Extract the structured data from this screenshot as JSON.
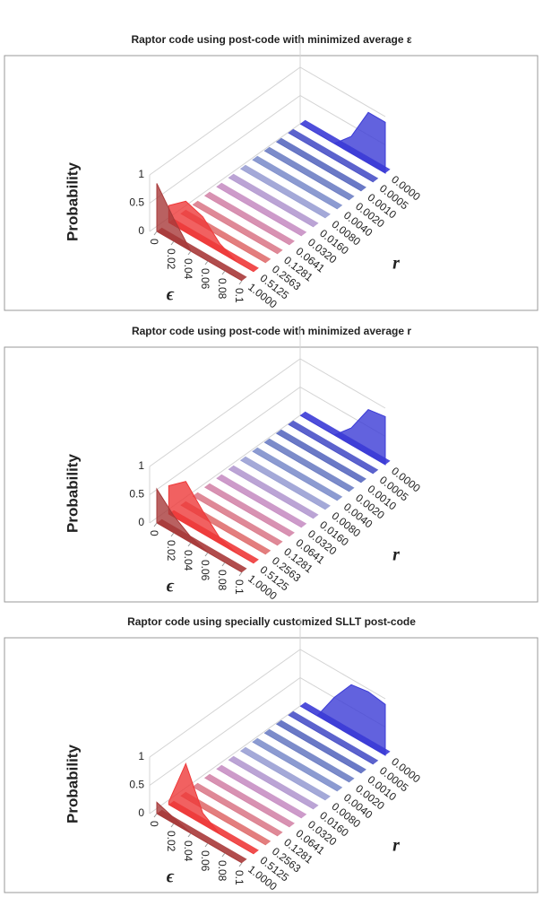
{
  "chart_data": [
    {
      "type": "area3d",
      "title": "Raptor code using post-code with minimized average  ε",
      "y_label": "Probability",
      "x_label": "ϵ",
      "z_label": "r",
      "x": [
        0,
        0.02,
        0.04,
        0.06,
        0.08,
        0.1
      ],
      "xlim": [
        0,
        0.1
      ],
      "xticks": [
        0,
        0.02,
        0.04,
        0.06,
        0.08,
        0.1
      ],
      "ylim": [
        0,
        1
      ],
      "yticks": [
        0,
        0.5,
        1
      ],
      "grid": true,
      "series": [
        {
          "name": "0.0000",
          "color": "#3b3bd6",
          "values": [
            0,
            0,
            0,
            0.3,
            0.9,
            0.9
          ]
        },
        {
          "name": "0.0005",
          "color": "#4a52c8",
          "values": [
            0,
            0,
            0,
            0,
            0,
            0
          ]
        },
        {
          "name": "0.0010",
          "color": "#5a6ac0",
          "values": [
            0,
            0,
            0,
            0,
            0,
            0
          ]
        },
        {
          "name": "0.0020",
          "color": "#6e7fc4",
          "values": [
            0,
            0,
            0,
            0,
            0,
            0
          ]
        },
        {
          "name": "0.0040",
          "color": "#8090cc",
          "values": [
            0,
            0,
            0,
            0,
            0,
            0
          ]
        },
        {
          "name": "0.0080",
          "color": "#9aa0d4",
          "values": [
            0,
            0,
            0,
            0,
            0,
            0
          ]
        },
        {
          "name": "0.0160",
          "color": "#b49ad0",
          "values": [
            0,
            0,
            0,
            0,
            0,
            0
          ]
        },
        {
          "name": "0.0320",
          "color": "#c890c4",
          "values": [
            0,
            0,
            0,
            0,
            0,
            0
          ]
        },
        {
          "name": "0.0641",
          "color": "#d486aa",
          "values": [
            0,
            0,
            0,
            0,
            0,
            0
          ]
        },
        {
          "name": "0.1281",
          "color": "#dc7c8c",
          "values": [
            0,
            0,
            0,
            0,
            0,
            0
          ]
        },
        {
          "name": "0.2563",
          "color": "#e07070",
          "values": [
            0,
            0,
            0,
            0,
            0,
            0
          ]
        },
        {
          "name": "0.5125",
          "color": "#ee3a3a",
          "values": [
            0.3,
            0.55,
            0.45,
            0.15,
            0,
            0
          ]
        },
        {
          "name": "1.0000",
          "color": "#a83a3a",
          "values": [
            0.85,
            0.4,
            0,
            0,
            0,
            0
          ]
        }
      ]
    },
    {
      "type": "area3d",
      "title": "Raptor code using post-code with minimized average  r",
      "y_label": "Probability",
      "x_label": "ϵ",
      "z_label": "r",
      "x": [
        0,
        0.02,
        0.04,
        0.06,
        0.08,
        0.1
      ],
      "xlim": [
        0,
        0.1
      ],
      "xticks": [
        0,
        0.02,
        0.04,
        0.06,
        0.08,
        0.1
      ],
      "ylim": [
        0,
        1
      ],
      "yticks": [
        0,
        0.5,
        1
      ],
      "grid": true,
      "series": [
        {
          "name": "0.0000",
          "color": "#3b3bd6",
          "values": [
            0,
            0,
            0,
            0.3,
            0.8,
            0.85
          ]
        },
        {
          "name": "0.0005",
          "color": "#4a52c8",
          "values": [
            0,
            0,
            0,
            0,
            0,
            0
          ]
        },
        {
          "name": "0.0010",
          "color": "#5a6ac0",
          "values": [
            0,
            0,
            0,
            0,
            0,
            0
          ]
        },
        {
          "name": "0.0020",
          "color": "#6e7fc4",
          "values": [
            0,
            0,
            0,
            0,
            0,
            0
          ]
        },
        {
          "name": "0.0040",
          "color": "#8090cc",
          "values": [
            0,
            0,
            0,
            0,
            0,
            0
          ]
        },
        {
          "name": "0.0080",
          "color": "#9aa0d4",
          "values": [
            0,
            0,
            0,
            0,
            0,
            0
          ]
        },
        {
          "name": "0.0160",
          "color": "#b49ad0",
          "values": [
            0,
            0,
            0,
            0,
            0,
            0
          ]
        },
        {
          "name": "0.0320",
          "color": "#c890c4",
          "values": [
            0,
            0,
            0,
            0,
            0,
            0
          ]
        },
        {
          "name": "0.0641",
          "color": "#d486aa",
          "values": [
            0,
            0,
            0,
            0,
            0,
            0
          ]
        },
        {
          "name": "0.1281",
          "color": "#dc7c8c",
          "values": [
            0,
            0,
            0,
            0,
            0,
            0
          ]
        },
        {
          "name": "0.2563",
          "color": "#e07070",
          "values": [
            0,
            0,
            0,
            0,
            0,
            0
          ]
        },
        {
          "name": "0.5125",
          "color": "#ee3a3a",
          "values": [
            0.5,
            0.75,
            0.4,
            0.1,
            0,
            0
          ]
        },
        {
          "name": "1.0000",
          "color": "#a83a3a",
          "values": [
            0.6,
            0.3,
            0.1,
            0,
            0,
            0
          ]
        }
      ]
    },
    {
      "type": "area3d",
      "title": "Raptor code using specially customized SLLT post-code",
      "y_label": "Probability",
      "x_label": "ϵ",
      "z_label": "r",
      "x": [
        0,
        0.02,
        0.04,
        0.06,
        0.08,
        0.1
      ],
      "xlim": [
        0,
        0.1
      ],
      "xticks": [
        0,
        0.02,
        0.04,
        0.06,
        0.08,
        0.1
      ],
      "ylim": [
        0,
        1
      ],
      "yticks": [
        0,
        0.5,
        1
      ],
      "grid": true,
      "series": [
        {
          "name": "0.0000",
          "color": "#3b3bd6",
          "values": [
            0,
            0,
            0.5,
            0.9,
            0.95,
            0.9
          ]
        },
        {
          "name": "0.0005",
          "color": "#4a52c8",
          "values": [
            0,
            0,
            0,
            0,
            0,
            0
          ]
        },
        {
          "name": "0.0010",
          "color": "#5a6ac0",
          "values": [
            0,
            0,
            0,
            0,
            0,
            0
          ]
        },
        {
          "name": "0.0020",
          "color": "#6e7fc4",
          "values": [
            0,
            0,
            0,
            0,
            0,
            0
          ]
        },
        {
          "name": "0.0040",
          "color": "#8090cc",
          "values": [
            0,
            0,
            0,
            0,
            0,
            0
          ]
        },
        {
          "name": "0.0080",
          "color": "#9aa0d4",
          "values": [
            0,
            0,
            0,
            0,
            0,
            0
          ]
        },
        {
          "name": "0.0160",
          "color": "#b49ad0",
          "values": [
            0,
            0,
            0,
            0,
            0,
            0
          ]
        },
        {
          "name": "0.0320",
          "color": "#c890c4",
          "values": [
            0,
            0,
            0,
            0,
            0,
            0
          ]
        },
        {
          "name": "0.0641",
          "color": "#d486aa",
          "values": [
            0,
            0,
            0,
            0,
            0,
            0
          ]
        },
        {
          "name": "0.1281",
          "color": "#dc7c8c",
          "values": [
            0,
            0,
            0,
            0,
            0,
            0
          ]
        },
        {
          "name": "0.2563",
          "color": "#e07070",
          "values": [
            0,
            0,
            0,
            0,
            0,
            0
          ]
        },
        {
          "name": "0.5125",
          "color": "#ee3a3a",
          "values": [
            0.05,
            0.9,
            0.2,
            0,
            0,
            0
          ]
        },
        {
          "name": "1.0000",
          "color": "#a83a3a",
          "values": [
            0.2,
            0.1,
            0,
            0,
            0,
            0
          ]
        }
      ]
    }
  ]
}
